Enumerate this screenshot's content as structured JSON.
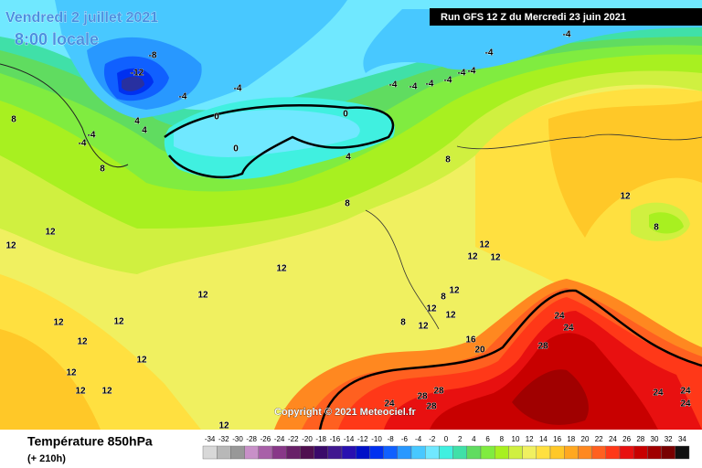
{
  "header": {
    "date": "Vendredi 2 juillet 2021",
    "time": "8:00 locale",
    "run": "Run GFS 12 Z du Mercredi 23 juin 2021",
    "copyright": "Copyright © 2021 Meteociel.fr"
  },
  "footer": {
    "title": "Température 850hPa",
    "lead": "(+ 210h)"
  },
  "legend": {
    "values": [
      -34,
      -32,
      -30,
      -28,
      -26,
      -24,
      -22,
      -20,
      -18,
      -16,
      -14,
      -12,
      -10,
      -8,
      -6,
      -4,
      -2,
      0,
      2,
      4,
      6,
      8,
      10,
      12,
      14,
      16,
      18,
      20,
      22,
      24,
      26,
      28,
      30,
      32,
      34
    ],
    "colors": [
      "#d8d8d8",
      "#b8b8b8",
      "#989898",
      "#c890c8",
      "#a860a8",
      "#883888",
      "#682068",
      "#501050",
      "#3a0a6a",
      "#401890",
      "#2810b0",
      "#0010c8",
      "#0030f0",
      "#1060ff",
      "#2898ff",
      "#48c8ff",
      "#70e8ff",
      "#40f0e0",
      "#40e0a8",
      "#60dc60",
      "#80ec40",
      "#a8f020",
      "#d0f040",
      "#f0f060",
      "#ffe040",
      "#ffc828",
      "#ffa820",
      "#ff8820",
      "#ff6020",
      "#ff3818",
      "#e81010",
      "#c80000",
      "#a00000",
      "#780000",
      "#101010"
    ]
  },
  "contour_labels": [
    -12,
    -8,
    -4,
    -4,
    -4,
    -4,
    -4,
    -4,
    -4,
    -4,
    -4,
    -4,
    -4,
    -4,
    4,
    4,
    0,
    0,
    0,
    4,
    8,
    8,
    8,
    8,
    12,
    12,
    12,
    12,
    12,
    12,
    12,
    12,
    12,
    12,
    12,
    12,
    8,
    12,
    12,
    12,
    12,
    8,
    12,
    12,
    8,
    12,
    16,
    20,
    24,
    24,
    28,
    24,
    28,
    28,
    28,
    24,
    24,
    24,
    12
  ]
}
